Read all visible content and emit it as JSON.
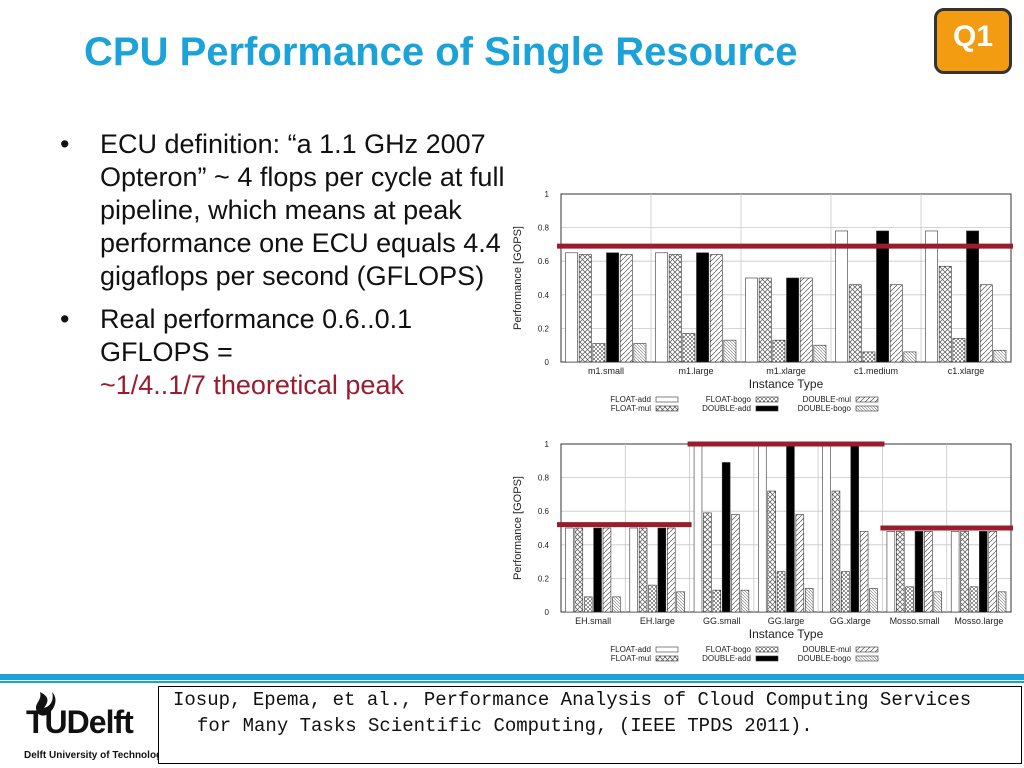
{
  "slide": {
    "title": "CPU Performance of Single Resource",
    "badge": "Q1",
    "bullets": [
      {
        "text": "ECU definition: “a 1.1 GHz 2007 Opteron” ~ 4 flops per cycle at full pipeline, which means at peak performance one ECU equals 4.4 gigaflops per second (GFLOPS)"
      },
      {
        "text": "Real performance 0.6..0.1 GFLOPS =",
        "highlight": "~1/4..1/7 theoretical peak"
      }
    ],
    "bullet_glyph": "•",
    "citation": "Iosup, Epema, et al., Performance Analysis of Cloud Computing Services for Many Tasks Scientific Computing, (IEEE TPDS 2011).",
    "logo_text": "TUDelft",
    "logo_subtext": "Delft University of Technology",
    "logo_icon": "flame-icon",
    "colors": {
      "title": "#1ba3d9",
      "highlight": "#9b1c2c",
      "badge": "#f39c12",
      "marker": "#9b1c2c"
    }
  },
  "chart_data": [
    {
      "type": "bar",
      "xlabel": "Instance Type",
      "ylabel": "Performance [GOPS]",
      "ylim": [
        0,
        1
      ],
      "yticks": [
        "0",
        "0.2",
        "0.4",
        "0.6",
        "0.8",
        "1"
      ],
      "grid": true,
      "legend_placement": "bottom",
      "categories": [
        "m1.small",
        "m1.large",
        "m1.xlarge",
        "c1.medium",
        "c1.xlarge"
      ],
      "series": [
        {
          "name": "FLOAT-add",
          "values": [
            0.65,
            0.65,
            0.5,
            0.78,
            0.78
          ]
        },
        {
          "name": "FLOAT-mul",
          "values": [
            0.64,
            0.64,
            0.5,
            0.46,
            0.57
          ]
        },
        {
          "name": "FLOAT-bogo",
          "values": [
            0.11,
            0.17,
            0.13,
            0.06,
            0.14
          ]
        },
        {
          "name": "DOUBLE-add",
          "values": [
            0.65,
            0.65,
            0.5,
            0.78,
            0.78
          ]
        },
        {
          "name": "DOUBLE-mul",
          "values": [
            0.64,
            0.64,
            0.5,
            0.46,
            0.46
          ]
        },
        {
          "name": "DOUBLE-bogo",
          "values": [
            0.11,
            0.13,
            0.1,
            0.06,
            0.07
          ]
        }
      ],
      "markers": [
        {
          "from": 0,
          "to": 4,
          "y": 0.69
        }
      ]
    },
    {
      "type": "bar",
      "xlabel": "Instance Type",
      "ylabel": "Performance [GOPS]",
      "ylim": [
        0,
        1
      ],
      "yticks": [
        "0",
        "0.2",
        "0.4",
        "0.6",
        "0.8",
        "1"
      ],
      "grid": true,
      "legend_placement": "bottom",
      "categories": [
        "EH.small",
        "EH.large",
        "GG.small",
        "GG.large",
        "GG.xlarge",
        "Mosso.small",
        "Mosso.large"
      ],
      "series": [
        {
          "name": "FLOAT-add",
          "values": [
            0.5,
            0.5,
            1.0,
            1.0,
            1.0,
            0.48,
            0.48
          ]
        },
        {
          "name": "FLOAT-mul",
          "values": [
            0.5,
            0.5,
            0.59,
            0.72,
            0.72,
            0.48,
            0.48
          ]
        },
        {
          "name": "FLOAT-bogo",
          "values": [
            0.09,
            0.16,
            0.13,
            0.24,
            0.24,
            0.15,
            0.15
          ]
        },
        {
          "name": "DOUBLE-add",
          "values": [
            0.5,
            0.5,
            0.89,
            1.0,
            1.0,
            0.48,
            0.48
          ]
        },
        {
          "name": "DOUBLE-mul",
          "values": [
            0.5,
            0.5,
            0.58,
            0.58,
            0.48,
            0.48,
            0.48
          ]
        },
        {
          "name": "DOUBLE-bogo",
          "values": [
            0.09,
            0.12,
            0.13,
            0.14,
            0.14,
            0.12,
            0.12
          ]
        }
      ],
      "markers": [
        {
          "from": 0,
          "to": 1,
          "y": 0.52
        },
        {
          "from": 2,
          "to": 4,
          "y": 1.0
        },
        {
          "from": 5,
          "to": 6,
          "y": 0.5
        }
      ]
    }
  ]
}
